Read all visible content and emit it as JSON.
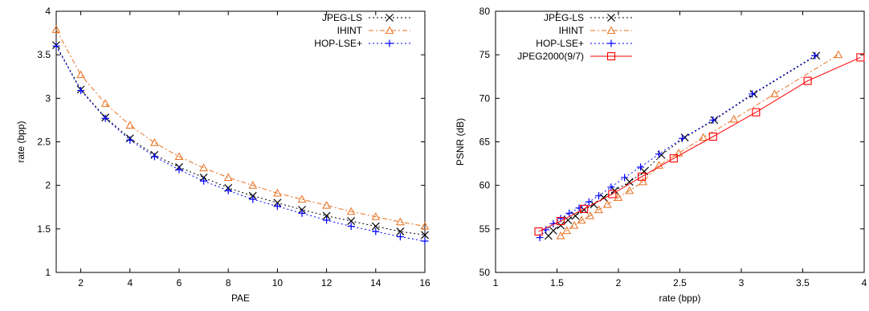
{
  "chart_data": [
    {
      "type": "line",
      "title": "",
      "xlabel": "PAE",
      "ylabel": "rate (bpp)",
      "xlim": [
        1,
        16
      ],
      "ylim": [
        1,
        4
      ],
      "xticks": [
        "2",
        "4",
        "6",
        "8",
        "10",
        "12",
        "14",
        "16"
      ],
      "yticks": [
        "1",
        "1.5",
        "2",
        "2.5",
        "3",
        "3.5",
        "4"
      ],
      "grid": false,
      "legend_position": "top-right",
      "series": [
        {
          "name": "JPEG-LS",
          "color": "#000000",
          "marker": "x-mark",
          "dash": "dotted",
          "x": [
            1,
            2,
            3,
            4,
            5,
            6,
            7,
            8,
            9,
            10,
            11,
            12,
            13,
            14,
            15,
            16
          ],
          "y": [
            3.61,
            3.1,
            2.78,
            2.54,
            2.35,
            2.21,
            2.09,
            1.97,
            1.88,
            1.8,
            1.72,
            1.65,
            1.59,
            1.53,
            1.47,
            1.43
          ]
        },
        {
          "name": "IHINT",
          "color": "#e8701f",
          "marker": "triangle",
          "dash": "dashdot",
          "x": [
            1,
            2,
            3,
            4,
            5,
            6,
            7,
            8,
            9,
            10,
            11,
            12,
            13,
            14,
            15,
            16
          ],
          "y": [
            3.79,
            3.27,
            2.94,
            2.69,
            2.49,
            2.33,
            2.2,
            2.09,
            2.0,
            1.91,
            1.84,
            1.77,
            1.7,
            1.64,
            1.58,
            1.53
          ]
        },
        {
          "name": "HOP-LSE+",
          "color": "#0000ff",
          "marker": "plus",
          "dash": "dotted",
          "x": [
            1,
            2,
            3,
            4,
            5,
            6,
            7,
            8,
            9,
            10,
            11,
            12,
            13,
            14,
            15,
            16
          ],
          "y": [
            3.6,
            3.09,
            2.77,
            2.52,
            2.33,
            2.18,
            2.05,
            1.94,
            1.84,
            1.76,
            1.68,
            1.6,
            1.53,
            1.47,
            1.41,
            1.36
          ]
        }
      ]
    },
    {
      "type": "line",
      "title": "",
      "xlabel": "rate (bpp)",
      "ylabel": "PSNR (dB)",
      "xlim": [
        1,
        4
      ],
      "ylim": [
        50,
        80
      ],
      "xticks": [
        "1",
        "1.5",
        "2",
        "2.5",
        "3",
        "3.5",
        "4"
      ],
      "yticks": [
        "50",
        "55",
        "60",
        "65",
        "70",
        "75",
        "80"
      ],
      "grid": false,
      "legend_position": "top-left",
      "series": [
        {
          "name": "JPEG-LS",
          "color": "#000000",
          "marker": "x-mark",
          "dash": "dotted",
          "x": [
            1.43,
            1.47,
            1.53,
            1.59,
            1.65,
            1.72,
            1.8,
            1.88,
            1.97,
            2.09,
            2.21,
            2.35,
            2.54,
            2.78,
            3.1,
            3.61
          ],
          "y": [
            54.2,
            54.8,
            55.4,
            56.0,
            56.5,
            57.2,
            57.8,
            58.6,
            59.4,
            60.4,
            61.6,
            63.5,
            65.5,
            67.5,
            70.5,
            74.9
          ]
        },
        {
          "name": "IHINT",
          "color": "#e8701f",
          "marker": "triangle",
          "dash": "dashdot",
          "x": [
            1.53,
            1.58,
            1.64,
            1.7,
            1.77,
            1.84,
            1.91,
            2.0,
            2.09,
            2.2,
            2.33,
            2.49,
            2.69,
            2.94,
            3.27,
            3.79
          ],
          "y": [
            54.2,
            54.8,
            55.4,
            56.0,
            56.5,
            57.2,
            57.8,
            58.6,
            59.4,
            60.4,
            62.3,
            63.7,
            65.5,
            67.6,
            70.5,
            75.0
          ]
        },
        {
          "name": "HOP-LSE+",
          "color": "#0000ff",
          "marker": "plus",
          "dash": "dotted",
          "x": [
            1.36,
            1.41,
            1.47,
            1.53,
            1.6,
            1.68,
            1.76,
            1.84,
            1.94,
            2.05,
            2.18,
            2.33,
            2.52,
            2.77,
            3.09,
            3.6
          ],
          "y": [
            54.0,
            54.9,
            55.6,
            56.2,
            56.8,
            57.4,
            58.1,
            58.8,
            59.8,
            60.9,
            62.1,
            63.6,
            65.4,
            67.5,
            70.5,
            74.9
          ]
        },
        {
          "name": "JPEG2000(9/7)",
          "color": "#ff0000",
          "marker": "square",
          "dash": "solid",
          "x": [
            1.35,
            1.53,
            1.72,
            1.95,
            2.19,
            2.45,
            2.77,
            3.12,
            3.54,
            3.97
          ],
          "y": [
            54.7,
            55.9,
            57.3,
            59.0,
            61.0,
            63.1,
            65.6,
            68.4,
            72.0,
            74.7
          ]
        }
      ]
    }
  ]
}
